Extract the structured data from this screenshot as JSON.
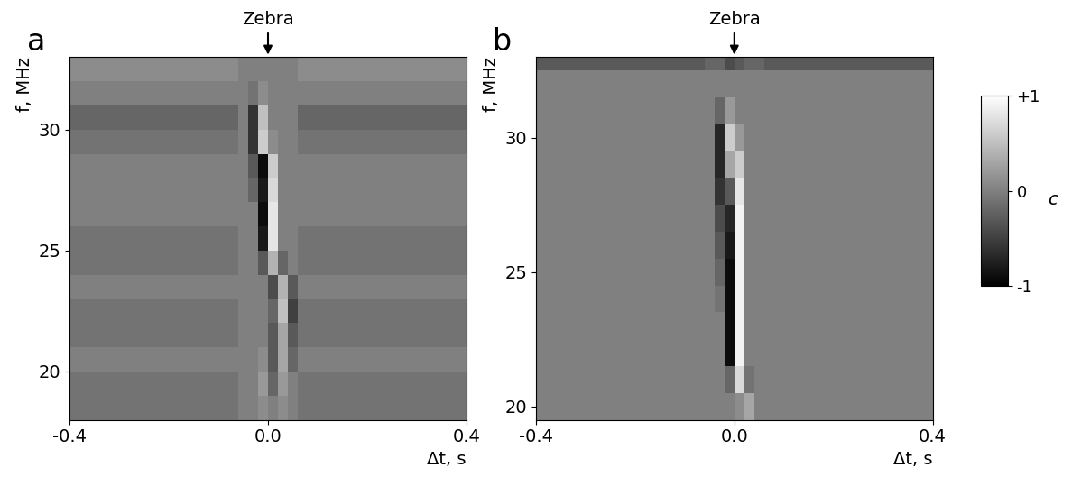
{
  "chart_data": [
    {
      "type": "heatmap",
      "panel_label": "a",
      "annotation": {
        "text": "Zebra",
        "x": 0.0
      },
      "xlabel": "Δt, s",
      "ylabel": "f, MHz",
      "xlim": [
        -0.4,
        0.4
      ],
      "xticks": [
        -0.4,
        0.0,
        0.4
      ],
      "ylim": [
        18,
        33
      ],
      "yticks": [
        20,
        25,
        30
      ],
      "x_edges": [
        -0.4,
        -0.06,
        -0.04,
        -0.02,
        0.0,
        0.02,
        0.04,
        0.06,
        0.4
      ],
      "y_edges": [
        18,
        19,
        20,
        21,
        22,
        23,
        24,
        25,
        26,
        27,
        28,
        29,
        30,
        31,
        32,
        33
      ],
      "cells": [
        [
          -0.1,
          0,
          0,
          0.1,
          0,
          0.1,
          0,
          -0.1
        ],
        [
          -0.1,
          0,
          0,
          0.2,
          -0.2,
          0.2,
          0,
          -0.1
        ],
        [
          0,
          0,
          0,
          0.1,
          -0.3,
          0.3,
          -0.2,
          0
        ],
        [
          -0.1,
          0,
          0,
          0,
          -0.3,
          0.3,
          -0.3,
          -0.1
        ],
        [
          -0.1,
          0,
          0,
          0,
          -0.2,
          0.5,
          -0.5,
          -0.1
        ],
        [
          0,
          0,
          0,
          0,
          -0.4,
          0.4,
          -0.3,
          0
        ],
        [
          -0.1,
          0,
          0,
          -0.3,
          0.4,
          -0.2,
          0,
          -0.1
        ],
        [
          -0.1,
          0,
          0,
          -0.8,
          0.8,
          0,
          0,
          -0.1
        ],
        [
          0,
          0,
          0,
          -0.9,
          0.8,
          0,
          0,
          0
        ],
        [
          0,
          0,
          -0.2,
          -0.8,
          0.7,
          0,
          0,
          0
        ],
        [
          0,
          0,
          -0.3,
          -0.9,
          0.6,
          0,
          0,
          0
        ],
        [
          -0.1,
          0,
          -0.6,
          0.6,
          0.1,
          0,
          0,
          -0.1
        ],
        [
          -0.2,
          0,
          -0.6,
          0.5,
          0,
          0,
          0,
          -0.2
        ],
        [
          0,
          0,
          -0.1,
          0.1,
          0,
          0,
          0,
          0
        ],
        [
          0.1,
          0,
          0,
          0,
          0,
          0,
          0,
          0.1
        ]
      ]
    },
    {
      "type": "heatmap",
      "panel_label": "b",
      "annotation": {
        "text": "Zebra",
        "x": 0.0
      },
      "xlabel": "Δt, s",
      "ylabel": "f, MHz",
      "xlim": [
        -0.4,
        0.4
      ],
      "xticks": [
        -0.4,
        0.0,
        0.4
      ],
      "ylim": [
        19.5,
        33
      ],
      "yticks": [
        20,
        25,
        30
      ],
      "x_edges": [
        -0.4,
        -0.06,
        -0.04,
        -0.02,
        0.0,
        0.02,
        0.04,
        0.06,
        0.4
      ],
      "y_edges": [
        19.5,
        20.5,
        21.5,
        22.5,
        23.5,
        24.5,
        25.5,
        26.5,
        27.5,
        28.5,
        29.5,
        30.5,
        31.5,
        32.5,
        33.0
      ],
      "cells": [
        [
          0,
          0,
          0,
          0,
          0.1,
          0.3,
          0,
          0
        ],
        [
          0,
          0,
          0,
          -0.2,
          0.7,
          -0.1,
          0,
          0
        ],
        [
          0,
          0,
          0,
          -0.9,
          0.9,
          0,
          0,
          0
        ],
        [
          0,
          0,
          0,
          -0.9,
          0.9,
          0,
          0,
          0
        ],
        [
          0,
          0,
          -0.1,
          -0.9,
          0.9,
          0,
          0,
          0
        ],
        [
          0,
          0,
          -0.2,
          -0.9,
          0.9,
          0,
          0,
          0
        ],
        [
          0,
          0,
          -0.3,
          -0.8,
          0.9,
          0,
          0,
          0
        ],
        [
          0,
          0,
          -0.4,
          -0.7,
          0.9,
          0,
          0,
          0
        ],
        [
          0,
          0,
          -0.6,
          -0.3,
          0.8,
          0,
          0,
          0
        ],
        [
          0,
          0,
          -0.7,
          0.3,
          0.6,
          0,
          0,
          0
        ],
        [
          0,
          0,
          -0.7,
          0.6,
          0.2,
          0,
          0,
          0
        ],
        [
          0,
          0,
          -0.2,
          0.2,
          0,
          0,
          0,
          0
        ],
        [
          0,
          0,
          0,
          0,
          0,
          0,
          0,
          0
        ],
        [
          -0.3,
          -0.2,
          -0.2,
          -0.4,
          -0.3,
          -0.2,
          -0.2,
          -0.3
        ]
      ],
      "colorbar": {
        "label": "c",
        "range": [
          -1,
          1
        ],
        "ticks": [
          {
            "value": 1,
            "label": "+1"
          },
          0,
          -1
        ]
      }
    }
  ]
}
